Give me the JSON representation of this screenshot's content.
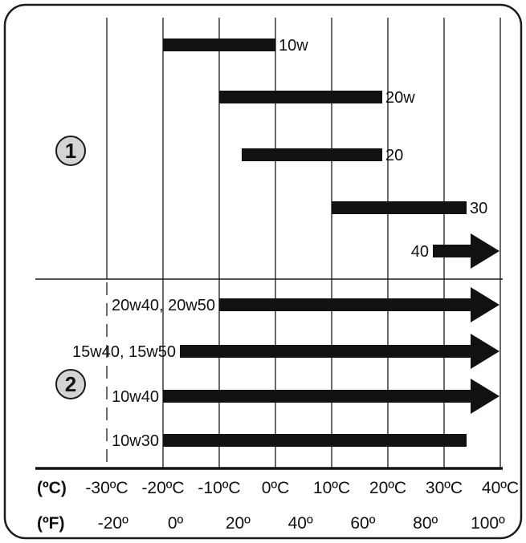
{
  "chart_data": {
    "type": "bar",
    "x_axis": {
      "range_c": [
        -40,
        45
      ],
      "celsius_ticks": [
        {
          "value": -30,
          "label": "-30ºC"
        },
        {
          "value": -20,
          "label": "-20ºC"
        },
        {
          "value": -10,
          "label": "-10ºC"
        },
        {
          "value": 0,
          "label": "0ºC"
        },
        {
          "value": 10,
          "label": "10ºC"
        },
        {
          "value": 20,
          "label": "20ºC"
        },
        {
          "value": 30,
          "label": "30ºC"
        },
        {
          "value": 40,
          "label": "40ºC"
        }
      ],
      "fahrenheit_ticks": [
        {
          "value": -20,
          "label": "-20º"
        },
        {
          "value": 0,
          "label": "0º"
        },
        {
          "value": 20,
          "label": "20º"
        },
        {
          "value": 40,
          "label": "40º"
        },
        {
          "value": 60,
          "label": "60º"
        },
        {
          "value": 80,
          "label": "80º"
        },
        {
          "value": 100,
          "label": "100º"
        }
      ],
      "celsius_unit": "(ºC)",
      "fahrenheit_unit": "(ºF)"
    },
    "groups": [
      {
        "marker": "1",
        "bars": [
          {
            "label": "10w",
            "min_c": -20,
            "max_c": 0,
            "open_ended": false,
            "label_side": "right"
          },
          {
            "label": "20w",
            "min_c": -10,
            "max_c": 19,
            "open_ended": false,
            "label_side": "right"
          },
          {
            "label": "20",
            "min_c": -6,
            "max_c": 19,
            "open_ended": false,
            "label_side": "right"
          },
          {
            "label": "30",
            "min_c": 10,
            "max_c": 34,
            "open_ended": false,
            "label_side": "right"
          },
          {
            "label": "40",
            "min_c": 28,
            "max_c": null,
            "open_ended": true,
            "label_side": "left"
          }
        ]
      },
      {
        "marker": "2",
        "bars": [
          {
            "label": "20w40, 20w50",
            "min_c": -10,
            "max_c": null,
            "open_ended": true,
            "label_side": "left"
          },
          {
            "label": "15w40, 15w50",
            "min_c": -17,
            "max_c": null,
            "open_ended": true,
            "label_side": "left"
          },
          {
            "label": "10w40",
            "min_c": -20,
            "max_c": null,
            "open_ended": true,
            "label_side": "left"
          },
          {
            "label": "10w30",
            "min_c": -20,
            "max_c": 34,
            "open_ended": false,
            "label_side": "left"
          }
        ]
      }
    ]
  }
}
